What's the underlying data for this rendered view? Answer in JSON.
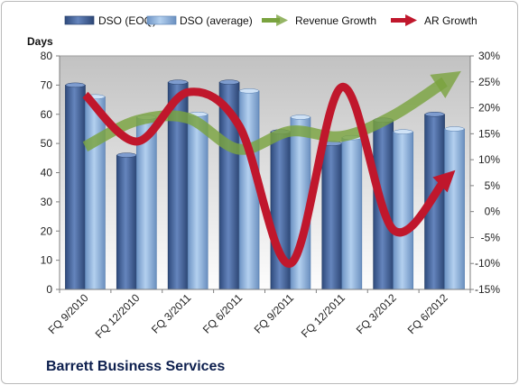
{
  "company": "Barrett Business Services",
  "chart_data": {
    "type": "bar",
    "title": "",
    "categories": [
      "FQ 9/2010",
      "FQ 12/2010",
      "FQ 3/2011",
      "FQ 6/2011",
      "FQ 9/2011",
      "FQ 12/2011",
      "FQ 3/2012",
      "FQ 6/2012"
    ],
    "ylabel": "Days",
    "ylim": [
      0,
      80
    ],
    "y_ticks": [
      "0",
      "10",
      "20",
      "30",
      "40",
      "50",
      "60",
      "70",
      "80"
    ],
    "y2lim": [
      -15,
      30
    ],
    "y2_ticks": [
      "-15%",
      "-10%",
      "-5%",
      "0%",
      "5%",
      "10%",
      "15%",
      "20%",
      "25%",
      "30%"
    ],
    "series": [
      {
        "name": "DSO (EOQ)",
        "kind": "bar",
        "axis": "left",
        "color": "#4f6fa8",
        "values": [
          70,
          46,
          71,
          71,
          54,
          50,
          58,
          60
        ]
      },
      {
        "name": "DSO (average)",
        "kind": "bar",
        "axis": "left",
        "color": "#8eb4de",
        "values": [
          66,
          59,
          60,
          68,
          59,
          52,
          54,
          55
        ]
      },
      {
        "name": "Revenue Growth",
        "kind": "line",
        "axis": "right",
        "color": "#7aa33f",
        "values": [
          12.5,
          17.5,
          18,
          12,
          15.5,
          14.5,
          18.5,
          25
        ]
      },
      {
        "name": "AR Growth",
        "kind": "line",
        "axis": "right",
        "color": "#c0172c",
        "values": [
          22.5,
          13.5,
          23,
          16.5,
          -10,
          24,
          -3.5,
          6
        ]
      }
    ],
    "legend": "top",
    "grid": false
  }
}
